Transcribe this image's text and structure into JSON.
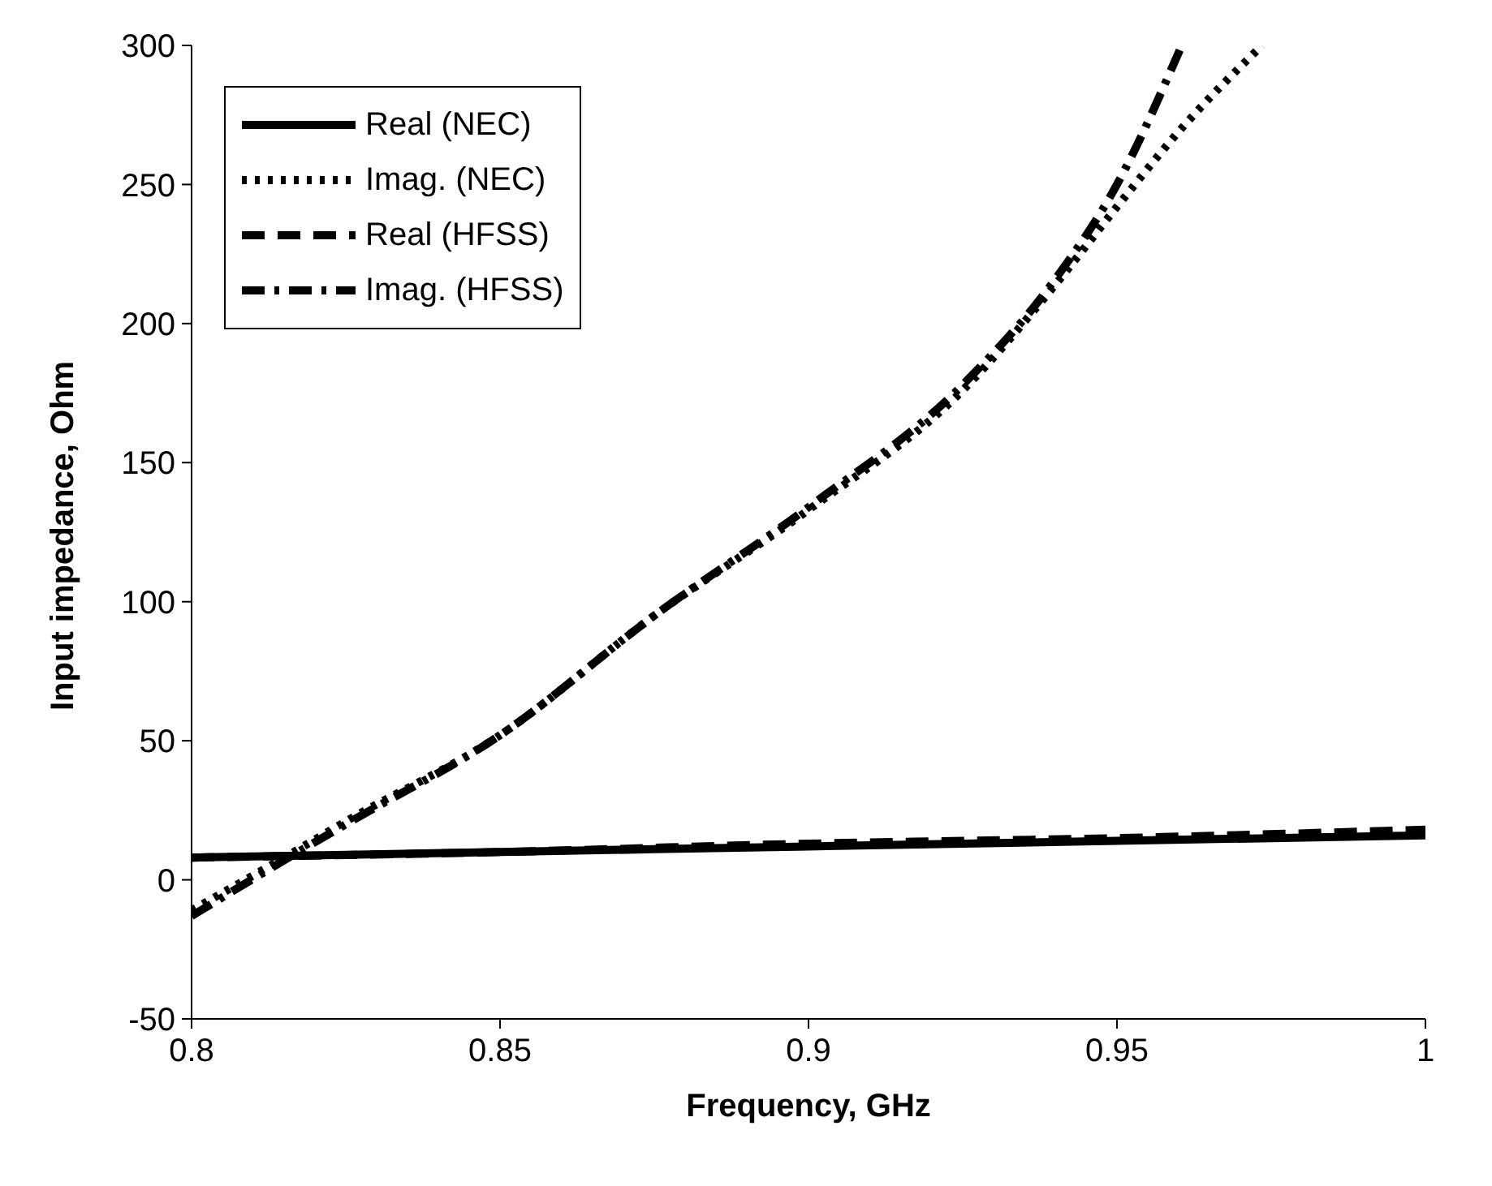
{
  "chart_data": {
    "type": "line",
    "xlabel": "Frequency, GHz",
    "ylabel": "Input impedance, Ohm",
    "xlim": [
      0.8,
      1
    ],
    "xticks": [
      0.8,
      0.85,
      0.9,
      0.95,
      1
    ],
    "ylim": [
      -50,
      300
    ],
    "yticks": [
      -50,
      0,
      50,
      100,
      150,
      200,
      250,
      300
    ],
    "legend": "top left",
    "marker": "none",
    "series": [
      {
        "name": "Real (NEC)",
        "color": "#000000",
        "line_style": "solid",
        "x": [
          0.8,
          0.85,
          0.9,
          0.95,
          1.0
        ],
        "values": [
          8,
          10,
          12,
          14,
          16
        ]
      },
      {
        "name": "Imag. (NEC)",
        "color": "#000000",
        "line_style": "dotted",
        "x": [
          0.8,
          0.815,
          0.825,
          0.85,
          0.875,
          0.9,
          0.925,
          0.94,
          0.95,
          0.96,
          0.9735
        ],
        "values": [
          -11,
          8,
          21,
          52,
          95,
          133,
          176,
          214,
          242,
          269,
          300
        ]
      },
      {
        "name": "Real (HFSS)",
        "color": "#000000",
        "line_style": "dashed",
        "x": [
          0.8,
          0.85,
          0.9,
          0.95,
          1.0
        ],
        "values": [
          8,
          10,
          13,
          15,
          18
        ]
      },
      {
        "name": "Imag. (HFSS)",
        "color": "#000000",
        "line_style": "dashdot",
        "x": [
          0.8,
          0.815,
          0.825,
          0.85,
          0.875,
          0.9,
          0.925,
          0.94,
          0.95,
          0.9605
        ],
        "values": [
          -13,
          7,
          20,
          52,
          95,
          134,
          178,
          216,
          250,
          300
        ]
      }
    ]
  }
}
